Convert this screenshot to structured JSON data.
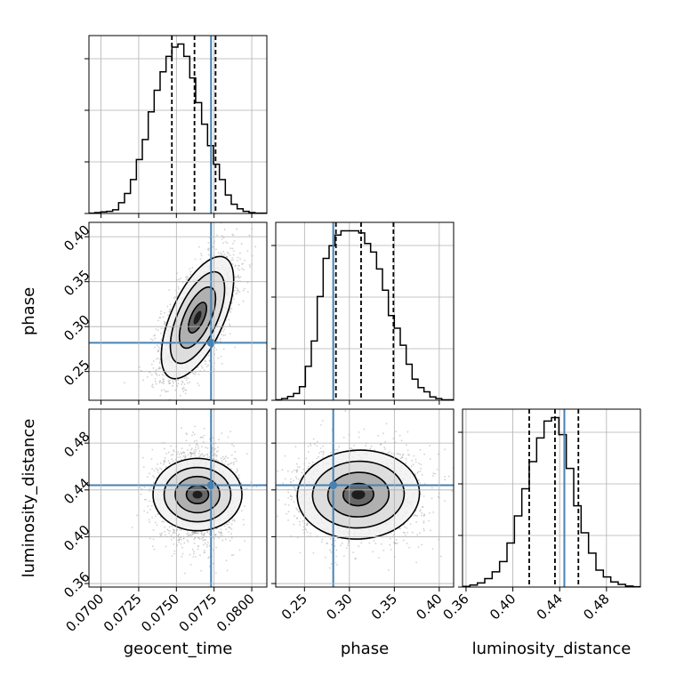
{
  "chart_data": {
    "type": "corner",
    "parameters": [
      "geocent_time",
      "phase",
      "luminosity_distance"
    ],
    "truth_color": "#4682b4",
    "line_color": "#000000",
    "grid": true,
    "truths": {
      "geocent_time": 0.0773,
      "phase": 0.282,
      "luminosity_distance": 0.444
    },
    "ranges": {
      "geocent_time": [
        0.0692,
        0.081
      ],
      "phase": [
        0.218,
        0.416
      ],
      "luminosity_distance": [
        0.357,
        0.509
      ]
    },
    "ticks": {
      "geocent_time": [
        "0.0700",
        "0.0725",
        "0.0750",
        "0.0775",
        "0.0800"
      ],
      "phase": [
        "0.25",
        "0.30",
        "0.35",
        "0.40"
      ],
      "luminosity_distance": [
        "0.36",
        "0.40",
        "0.44",
        "0.48"
      ]
    },
    "quantiles": {
      "geocent_time": [
        0.0747,
        0.0762,
        0.0776
      ],
      "phase": [
        0.285,
        0.313,
        0.349
      ],
      "luminosity_distance": [
        0.414,
        0.436,
        0.456
      ]
    },
    "histograms": {
      "geocent_time": [
        0.1,
        0.3,
        0.5,
        0.7,
        1.2,
        3.5,
        6.5,
        11.0,
        17.5,
        24.0,
        33.0,
        40.0,
        46.0,
        51.0,
        54.0,
        55.0,
        51.0,
        44.0,
        36.0,
        29.0,
        22.0,
        16.0,
        11.0,
        6.0,
        3.0,
        1.5,
        0.7,
        0.3,
        0.1,
        0.1
      ],
      "phase": [
        0.1,
        0.4,
        0.9,
        1.6,
        3.2,
        8.0,
        14.0,
        24.5,
        33.5,
        36.5,
        39.0,
        40.0,
        40.0,
        40.0,
        39.5,
        37.0,
        35.0,
        31.0,
        26.0,
        20.0,
        17.0,
        13.0,
        8.5,
        5.0,
        3.0,
        2.0,
        0.8,
        0.4,
        0.1,
        0.1
      ],
      "luminosity_distance": [
        0.2,
        0.6,
        1.2,
        2.5,
        4.5,
        7.5,
        13.0,
        21.0,
        29.0,
        37.0,
        44.0,
        49.0,
        50.0,
        45.0,
        35.0,
        24.0,
        16.0,
        10.0,
        5.0,
        3.0,
        1.5,
        0.8,
        0.3,
        0.1
      ]
    },
    "correlations": [
      {
        "x": "geocent_time",
        "y": "phase",
        "mean": [
          0.0764,
          0.31
        ],
        "std": [
          0.0012,
          0.034
        ],
        "rho": 0.62
      },
      {
        "x": "geocent_time",
        "y": "luminosity_distance",
        "mean": [
          0.0764,
          0.436
        ],
        "std": [
          0.0012,
          0.019
        ],
        "rho": 0.0
      },
      {
        "x": "phase",
        "y": "luminosity_distance",
        "mean": [
          0.31,
          0.436
        ],
        "std": [
          0.034,
          0.019
        ],
        "rho": 0.03
      }
    ],
    "contour_levels_sigma": [
      0.5,
      1.0,
      1.5,
      2.0
    ]
  }
}
